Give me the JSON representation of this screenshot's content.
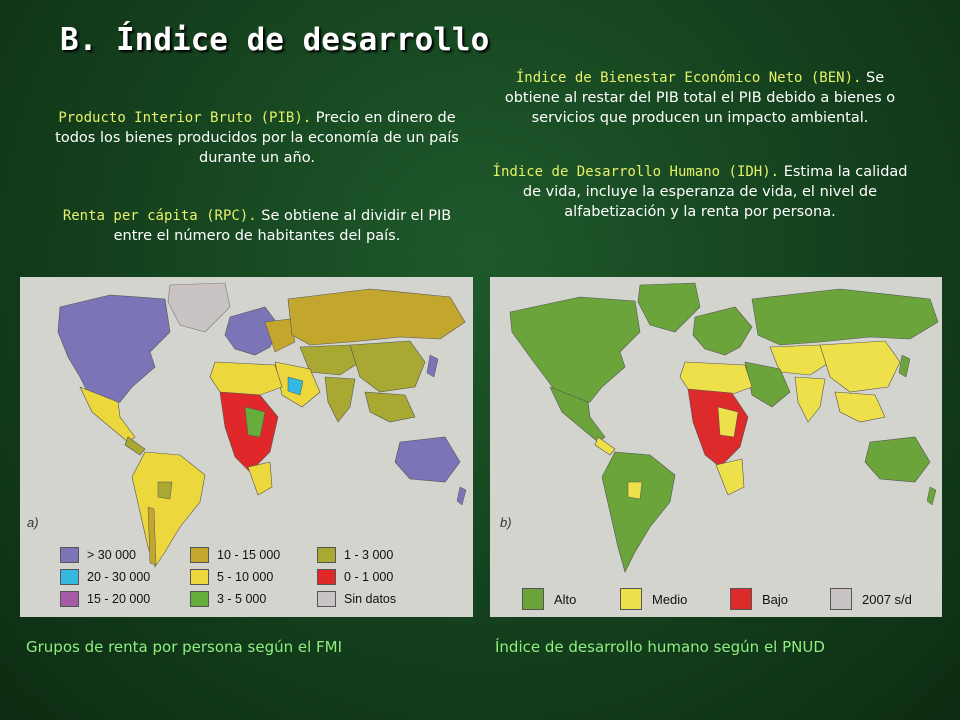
{
  "title": "B. Índice de desarrollo",
  "defs": {
    "pib": {
      "term": "Producto Interior Bruto (PIB).",
      "text": " Precio en dinero de todos los bienes producidos por la economía de un país durante un año."
    },
    "rpc": {
      "term": "Renta per cápita (RPC).",
      "text": " Se obtiene al dividir el PIB entre el número de habitantes del país."
    },
    "ben": {
      "term": "Índice de Bienestar Económico Neto (BEN).",
      "text": " Se obtiene al restar del PIB total el PIB debido a bienes o servicios que producen un impacto ambiental."
    },
    "idh": {
      "term": "Índice de Desarrollo Humano (IDH).",
      "text": " Estima la calidad de vida, incluye la esperanza de vida, el nivel de alfabetización y la renta por persona."
    }
  },
  "map_a": {
    "label": "a)",
    "caption": "Grupos de renta por persona según el FMI",
    "legend": [
      {
        "label": "> 30 000",
        "color": "#7b74b6"
      },
      {
        "label": "20 - 30 000",
        "color": "#33b8e0"
      },
      {
        "label": "15 - 20 000",
        "color": "#a45ca8"
      },
      {
        "label": "10 - 15 000",
        "color": "#c3a62e"
      },
      {
        "label": "5 - 10 000",
        "color": "#ecd83c"
      },
      {
        "label": "3 - 5 000",
        "color": "#66ad3c"
      },
      {
        "label": "1 - 3 000",
        "color": "#a8a832"
      },
      {
        "label": "0 - 1 000",
        "color": "#e0282a"
      },
      {
        "label": "Sin datos",
        "color": "#c9c4c3"
      }
    ]
  },
  "map_b": {
    "label": "b)",
    "caption": "Índice de desarrollo humano según el PNUD",
    "legend": [
      {
        "label": "Alto",
        "color": "#6aa43a"
      },
      {
        "label": "Medio",
        "color": "#eee04a"
      },
      {
        "label": "Bajo",
        "color": "#dd2a2a"
      },
      {
        "label": "2007 s/d",
        "color": "#c9c4c3"
      }
    ]
  }
}
